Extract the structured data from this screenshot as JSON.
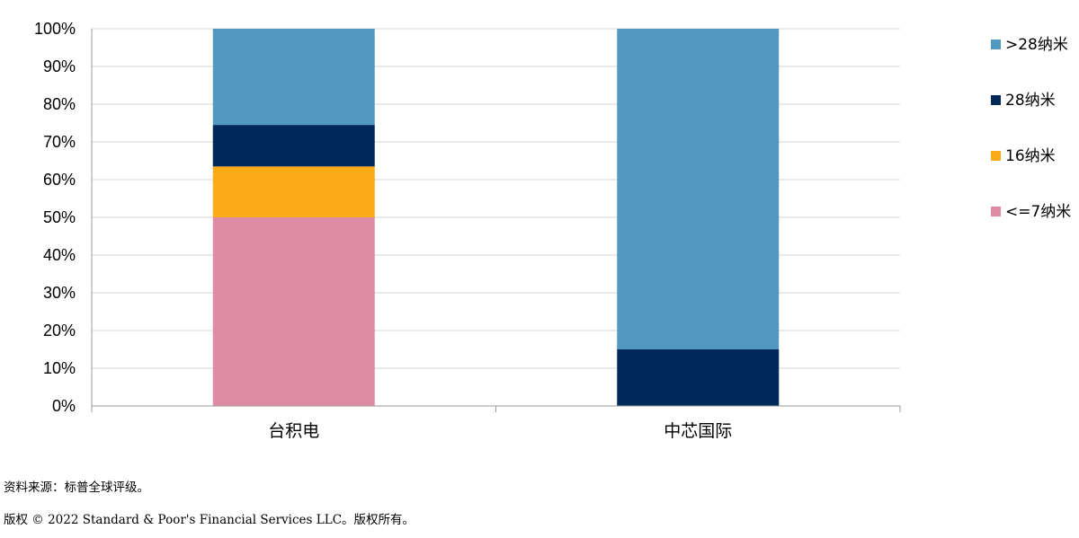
{
  "chart_data": {
    "type": "bar",
    "stacked": true,
    "categories": [
      "台积电",
      "中芯国际"
    ],
    "series": [
      {
        "name": "<=7纳米",
        "color": "#dd8ca4",
        "values": [
          50,
          0
        ]
      },
      {
        "name": "16纳米",
        "color": "#fbab18",
        "values": [
          13.5,
          0
        ]
      },
      {
        "name": "28纳米",
        "color": "#00285a",
        "values": [
          11,
          15
        ]
      },
      {
        "name": ">28纳米",
        "color": "#5299c2",
        "values": [
          25.5,
          85
        ]
      }
    ],
    "y_ticks": [
      "0%",
      "10%",
      "20%",
      "30%",
      "40%",
      "50%",
      "60%",
      "70%",
      "80%",
      "90%",
      "100%"
    ],
    "ylim": [
      0,
      100
    ],
    "grid": true,
    "legend": {
      "position": "right",
      "order": [
        ">28纳米",
        "28纳米",
        "16纳米",
        "<=7纳米"
      ]
    }
  },
  "footnotes": {
    "source": "资料来源：标普全球评级。",
    "copyright": "版权 © 2022 Standard & Poor's Financial Services LLC。版权所有。"
  }
}
